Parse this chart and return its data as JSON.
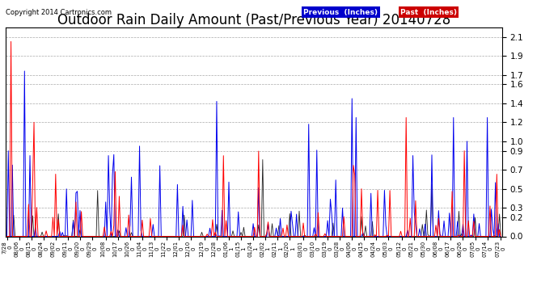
{
  "title": "Outdoor Rain Daily Amount (Past/Previous Year) 20140728",
  "copyright": "Copyright 2014 Cartronics.com",
  "legend_labels": [
    "Previous  (Inches)",
    "Past  (Inches)"
  ],
  "legend_colors": [
    "#0000cc",
    "#cc0000"
  ],
  "yticks": [
    0.0,
    0.2,
    0.3,
    0.5,
    0.7,
    0.9,
    1.0,
    1.2,
    1.4,
    1.6,
    1.7,
    1.9,
    2.1
  ],
  "ylim": [
    0.0,
    2.2
  ],
  "xtick_labels": [
    "7/28",
    "08/06",
    "08/15",
    "08/24",
    "09/02",
    "09/11",
    "09/20",
    "09/29",
    "10/08",
    "10/17",
    "10/26",
    "11/04",
    "11/13",
    "11/22",
    "12/01",
    "12/10",
    "12/19",
    "12/28",
    "01/06",
    "01/15",
    "01/24",
    "02/02",
    "02/11",
    "02/20",
    "03/01",
    "03/10",
    "03/19",
    "03/28",
    "04/06",
    "04/15",
    "04/24",
    "05/03",
    "05/12",
    "05/21",
    "05/30",
    "06/08",
    "06/17",
    "06/26",
    "07/05",
    "07/14",
    "07/23"
  ],
  "xtick_year": [
    "0",
    "0",
    "0",
    "0",
    "0",
    "0",
    "0",
    "0",
    "0",
    "0",
    "0",
    "0",
    "0",
    "0",
    "0",
    "0",
    "0",
    "0",
    "1",
    "1",
    "1",
    "1",
    "1",
    "1",
    "0",
    "0",
    "0",
    "0",
    "0",
    "0",
    "0",
    "0",
    "0",
    "0",
    "0",
    "0",
    "0",
    "0",
    "0",
    "0",
    "0"
  ],
  "background_color": "#ffffff",
  "plot_bg_color": "#ffffff",
  "grid_color": "#aaaaaa",
  "title_fontsize": 12,
  "n_points": 366,
  "blue_seed": 101,
  "red_seed": 202,
  "black_seed": 303
}
